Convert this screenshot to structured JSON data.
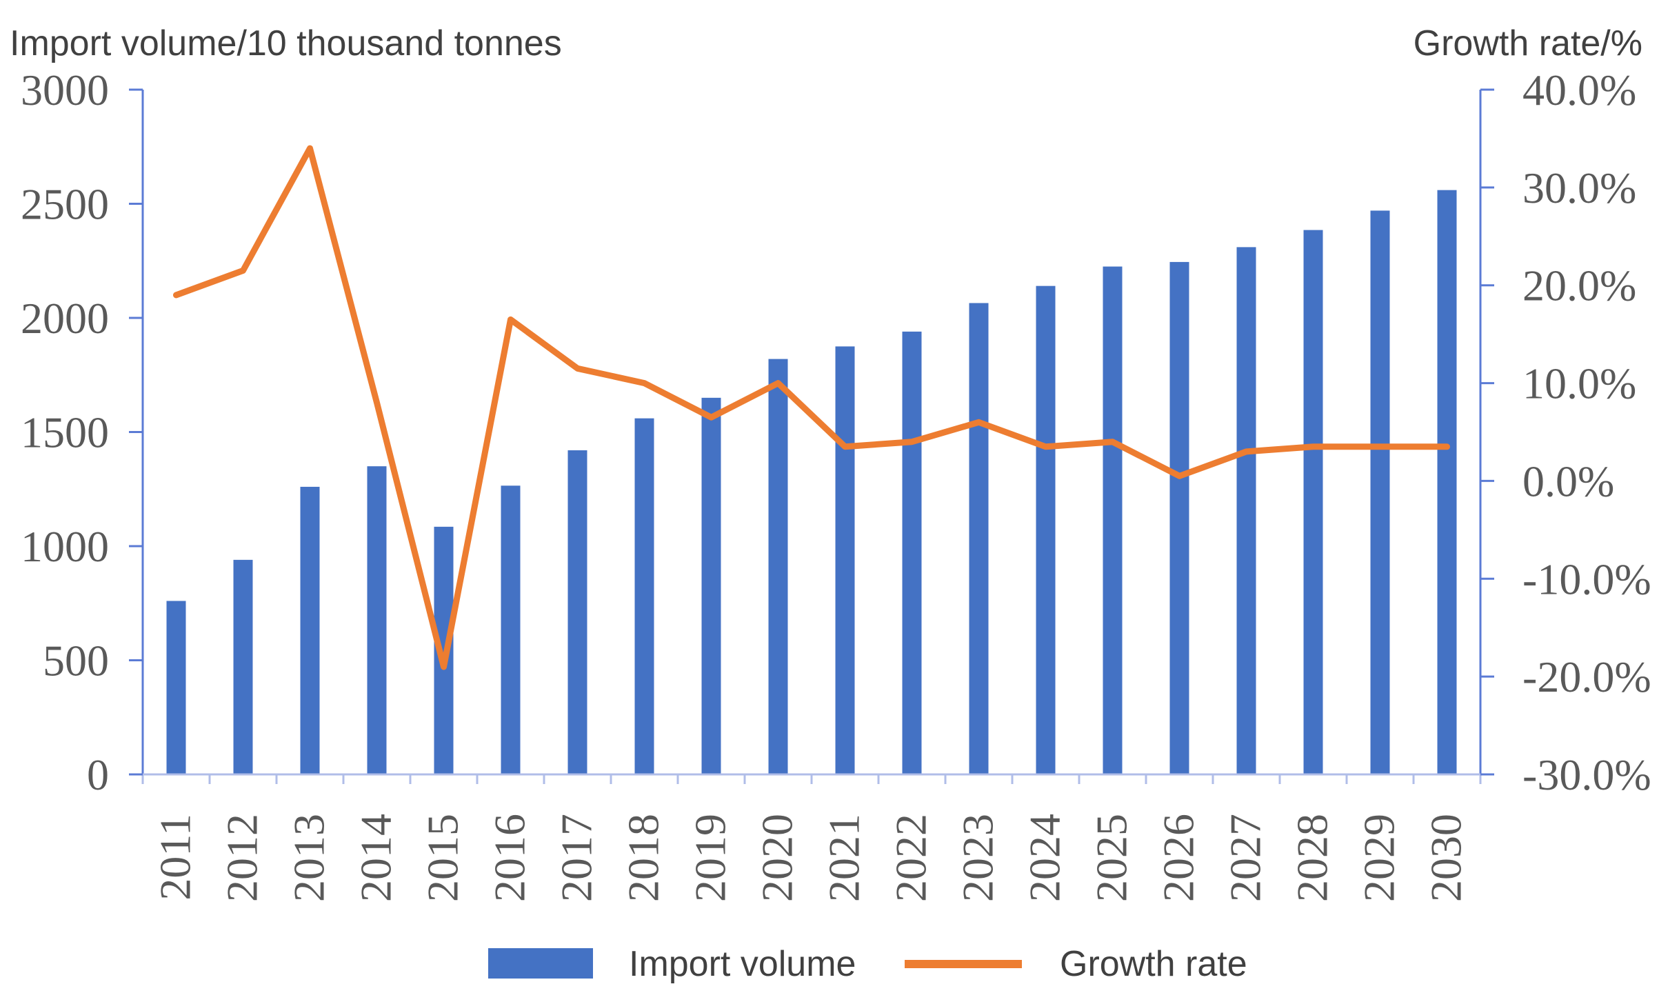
{
  "chart_data": {
    "type": "bar",
    "categories": [
      "2011",
      "2012",
      "2013",
      "2014",
      "2015",
      "2016",
      "2017",
      "2018",
      "2019",
      "2020",
      "2021",
      "2022",
      "2023",
      "2024",
      "2025",
      "2026",
      "2027",
      "2028",
      "2029",
      "2030"
    ],
    "series": [
      {
        "name": "Import volume",
        "type": "bar",
        "axis": "left",
        "color": "#4472c4",
        "values": [
          760,
          940,
          1260,
          1350,
          1085,
          1265,
          1420,
          1560,
          1650,
          1820,
          1875,
          1940,
          2065,
          2140,
          2225,
          2245,
          2310,
          2385,
          2470,
          2560
        ]
      },
      {
        "name": "Growth rate",
        "type": "line",
        "axis": "right",
        "color": "#ed7d31",
        "values": [
          19.0,
          21.5,
          34.0,
          8.0,
          -19.0,
          16.5,
          11.5,
          10.0,
          6.5,
          10.0,
          3.5,
          4.0,
          6.0,
          3.5,
          4.0,
          0.5,
          3.0,
          3.5,
          3.5,
          3.5
        ]
      }
    ],
    "ylabel": "Import volume/10 thousand tonnes",
    "y2label": "Growth rate/%",
    "ylim": [
      0,
      3000
    ],
    "y2lim": [
      -30,
      40
    ],
    "yticks": [
      "0",
      "500",
      "1000",
      "1500",
      "2000",
      "2500",
      "3000"
    ],
    "y2ticks": [
      "-30.0%",
      "-20.0%",
      "-10.0%",
      "0.0%",
      "10.0%",
      "20.0%",
      "30.0%",
      "40.0%"
    ],
    "grid": false,
    "legend": "bottom",
    "legend_labels": [
      "Import volume",
      "Growth rate"
    ]
  }
}
